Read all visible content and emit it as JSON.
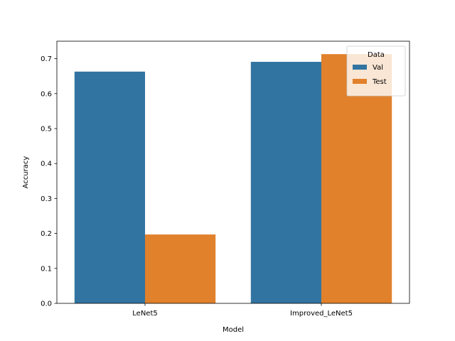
{
  "chart_data": {
    "type": "bar",
    "title": "",
    "xlabel": "Model",
    "ylabel": "Accuracy",
    "categories": [
      "LeNet5",
      "Improved_LeNet5"
    ],
    "series": [
      {
        "name": "Val",
        "values": [
          0.663,
          0.691
        ]
      },
      {
        "name": "Test",
        "values": [
          0.197,
          0.713
        ]
      }
    ],
    "ylim": [
      0,
      0.75
    ],
    "yticks": [
      0.0,
      0.1,
      0.2,
      0.3,
      0.4,
      0.5,
      0.6,
      0.7
    ],
    "ytick_labels": [
      "0.0",
      "0.1",
      "0.2",
      "0.3",
      "0.4",
      "0.5",
      "0.6",
      "0.7"
    ],
    "grid": false,
    "legend": {
      "title": "Data",
      "placement": "top-right"
    },
    "colors": {
      "Val": "#3274a1",
      "Test": "#e1812c"
    }
  }
}
